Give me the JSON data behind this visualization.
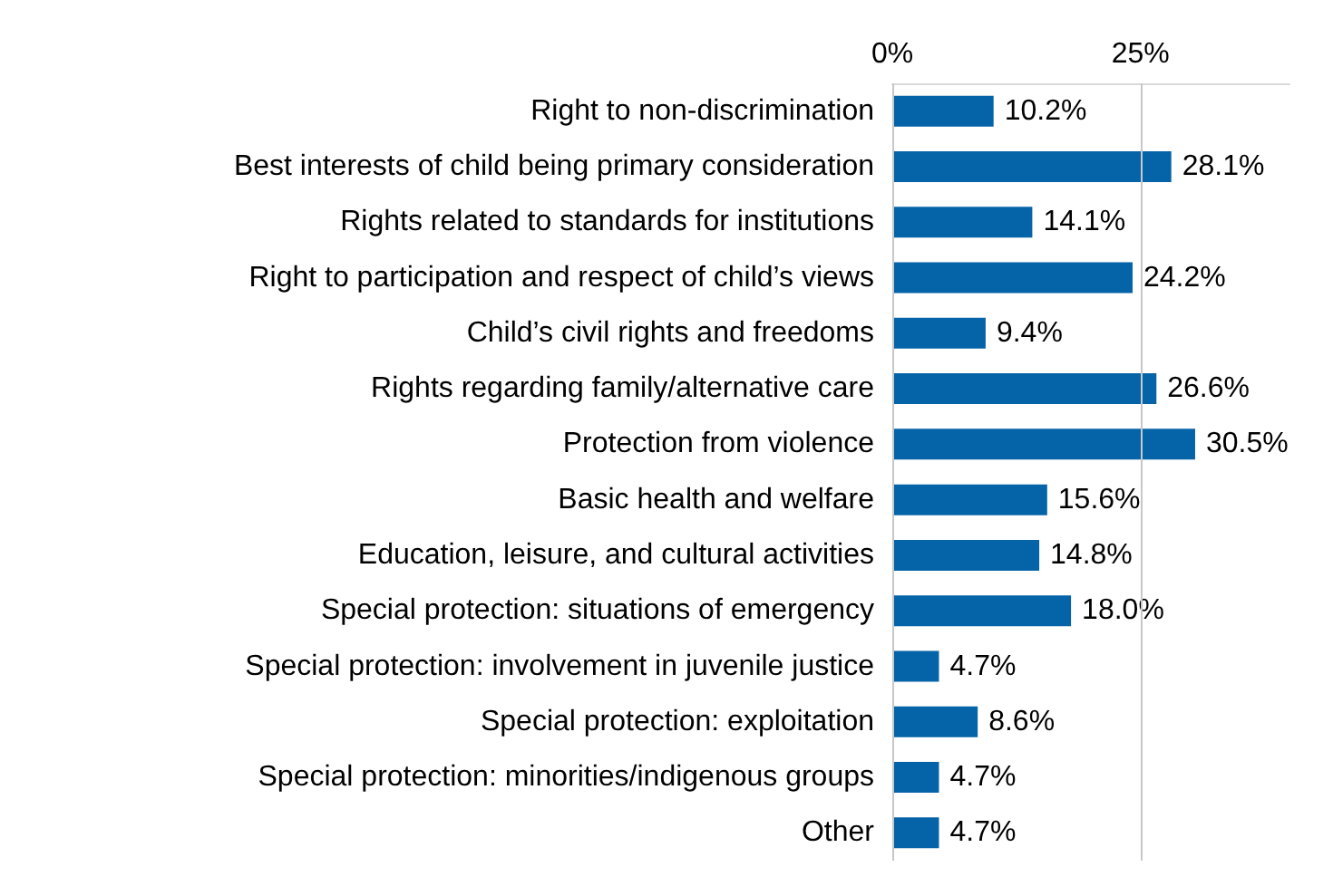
{
  "chart_data": {
    "type": "bar",
    "orientation": "horizontal",
    "categories": [
      "Right to non-discrimination",
      "Best interests of child being primary consideration",
      "Rights related to standards for institutions",
      "Right to participation and respect of child’s views",
      "Child’s civil rights and freedoms",
      "Rights regarding family/alternative care",
      "Protection from violence",
      "Basic health and welfare",
      "Education, leisure, and cultural activities",
      "Special protection: situations of emergency",
      "Special protection: involvement in juvenile justice",
      "Special protection: exploitation",
      "Special protection: minorities/indigenous groups",
      "Other"
    ],
    "values": [
      10.2,
      28.1,
      14.1,
      24.2,
      9.4,
      26.6,
      30.5,
      15.6,
      14.8,
      18.0,
      4.7,
      8.6,
      4.7,
      4.7
    ],
    "value_labels": [
      "10.2%",
      "28.1%",
      "14.1%",
      "24.2%",
      "9.4%",
      "26.6%",
      "30.5%",
      "15.6%",
      "14.8%",
      "18.0%",
      "4.7%",
      "8.6%",
      "4.7%",
      "4.7%"
    ],
    "color": "#0563a8",
    "xlim": [
      0,
      40
    ],
    "xticks": [
      {
        "value": 0,
        "label": "0%"
      },
      {
        "value": 25,
        "label": "25%"
      }
    ],
    "grid": "x"
  }
}
